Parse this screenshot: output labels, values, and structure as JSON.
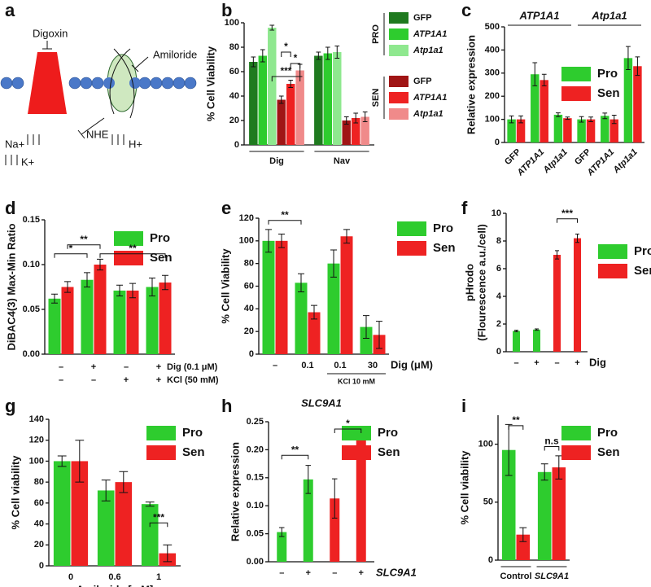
{
  "diagram": {
    "panel": "a",
    "labels": {
      "digoxin": "Digoxin",
      "amiloride": "Amiloride",
      "nhe": "NHE",
      "na": "Na+",
      "k": "K+",
      "h": "H+"
    }
  },
  "chart_data": [
    {
      "panel": "b",
      "type": "bar",
      "ylabel": "% Cell Viability",
      "categories": [
        "Dig",
        "Nav"
      ],
      "ylim": [
        0,
        100
      ],
      "yticks": [
        0,
        20,
        40,
        60,
        80,
        100
      ],
      "legend_groups": [
        "PRO",
        "SEN"
      ],
      "series": [
        {
          "name": "GFP",
          "color": "#1f7a1f",
          "values": [
            68,
            73
          ],
          "errors": [
            4,
            3
          ]
        },
        {
          "name": "ATP1A1",
          "color": "#2ecc2e",
          "values": [
            73,
            75
          ],
          "errors": [
            5,
            5
          ]
        },
        {
          "name": "Atp1a1",
          "color": "#8fe88f",
          "values": [
            96,
            76
          ],
          "errors": [
            2,
            5
          ]
        },
        {
          "name": "GFP",
          "color": "#a01515",
          "values": [
            37,
            20
          ],
          "errors": [
            3,
            3
          ]
        },
        {
          "name": "ATP1A1",
          "color": "#ee2222",
          "values": [
            50,
            22
          ],
          "errors": [
            3,
            4
          ]
        },
        {
          "name": "Atp1a1",
          "color": "#f08a8a",
          "values": [
            61,
            23
          ],
          "errors": [
            5,
            4
          ]
        }
      ],
      "annotations": [
        "***",
        "*",
        "*"
      ]
    },
    {
      "panel": "c",
      "type": "bar",
      "ylabel": "Relative expression",
      "categories": [
        "GFP",
        "ATP1A1",
        "Atp1a1",
        "GFP",
        "ATP1A1",
        "Atp1a1"
      ],
      "group_labels": [
        "ATP1A1",
        "Atp1a1"
      ],
      "ylim": [
        0,
        500
      ],
      "yticks": [
        0,
        100,
        200,
        300,
        400,
        500
      ],
      "series": [
        {
          "name": "Pro",
          "color": "#2ecc2e",
          "values": [
            100,
            295,
            120,
            100,
            115,
            365
          ],
          "errors": [
            15,
            50,
            8,
            12,
            12,
            50
          ]
        },
        {
          "name": "Sen",
          "color": "#ee2222",
          "values": [
            100,
            270,
            105,
            100,
            100,
            330
          ],
          "errors": [
            15,
            25,
            5,
            10,
            18,
            40
          ]
        }
      ],
      "annotations": []
    },
    {
      "panel": "d",
      "type": "bar",
      "ylabel": "DiBAC4(3) Max-Min Ratio",
      "categories": [
        null,
        null,
        null,
        null
      ],
      "x_rows": [
        {
          "label": "Dig (0.1 μM)",
          "values": [
            "–",
            "+",
            "–",
            "+"
          ]
        },
        {
          "label": "KCl (50 mM)",
          "values": [
            "–",
            "–",
            "+",
            "+"
          ]
        }
      ],
      "ylim": [
        0,
        0.15
      ],
      "yticks": [
        {
          "value": 0,
          "label": "0.00"
        },
        {
          "value": 0.05,
          "label": "0.05"
        },
        {
          "value": 0.1,
          "label": "0.10"
        },
        {
          "value": 0.15,
          "label": "0.15"
        }
      ],
      "series": [
        {
          "name": "Pro",
          "color": "#2ecc2e",
          "values": [
            0.062,
            0.083,
            0.071,
            0.075
          ],
          "errors": [
            0.005,
            0.008,
            0.006,
            0.01
          ]
        },
        {
          "name": "Sen",
          "color": "#ee2222",
          "values": [
            0.075,
            0.1,
            0.071,
            0.08
          ],
          "errors": [
            0.006,
            0.006,
            0.008,
            0.008
          ]
        }
      ],
      "annotations": [
        "*",
        "**",
        "**"
      ]
    },
    {
      "panel": "e",
      "type": "bar",
      "ylabel": "% Cell Viability",
      "categories": [
        "–",
        "0.1",
        "0.1",
        "30"
      ],
      "xlabel": "Dig (μM)",
      "bracket_label": "KCl 10 mM",
      "ylim": [
        0,
        120
      ],
      "yticks": [
        0,
        20,
        40,
        60,
        80,
        100,
        120
      ],
      "series": [
        {
          "name": "Pro",
          "color": "#2ecc2e",
          "values": [
            100,
            63,
            80,
            24
          ],
          "errors": [
            10,
            8,
            12,
            10
          ]
        },
        {
          "name": "Sen",
          "color": "#ee2222",
          "values": [
            100,
            37,
            104,
            17
          ],
          "errors": [
            6,
            6,
            6,
            12
          ]
        }
      ],
      "annotations": [
        "**"
      ]
    },
    {
      "panel": "f",
      "type": "bar",
      "ylabel": [
        "pHrodo",
        "(Flourescence a.u./cell)"
      ],
      "categories": [
        "–",
        "+",
        "–",
        "+"
      ],
      "xlabel": "Dig",
      "ylim": [
        0,
        10
      ],
      "yticks": [
        0,
        2,
        4,
        6,
        8,
        10
      ],
      "series": [
        {
          "name": "Pro",
          "color": "#2ecc2e",
          "values": [
            1.5,
            1.6,
            null,
            null
          ],
          "errors": [
            0.05,
            0.05,
            null,
            null
          ]
        },
        {
          "name": "Sen",
          "color": "#ee2222",
          "values": [
            null,
            null,
            7.0,
            8.2
          ],
          "errors": [
            null,
            null,
            0.3,
            0.3
          ]
        }
      ],
      "annotations": [
        "***"
      ]
    },
    {
      "panel": "g",
      "type": "bar",
      "ylabel": "% Cell viability",
      "categories": [
        "0",
        "0.6",
        "1"
      ],
      "xlabel": "Amiloride [mM]",
      "ylim": [
        0,
        140
      ],
      "yticks": [
        0,
        20,
        40,
        60,
        80,
        100,
        120,
        140
      ],
      "series": [
        {
          "name": "Pro",
          "color": "#2ecc2e",
          "values": [
            100,
            72,
            59
          ],
          "errors": [
            5,
            10,
            2
          ]
        },
        {
          "name": "Sen",
          "color": "#ee2222",
          "values": [
            100,
            80,
            12
          ],
          "errors": [
            20,
            10,
            8
          ]
        }
      ],
      "annotations": [
        "***"
      ]
    },
    {
      "panel": "h",
      "type": "bar",
      "title": "SLC9A1",
      "ylabel": "Relative expression",
      "categories": [
        "–",
        "+",
        "–",
        "+"
      ],
      "xlabel": "SLC9A1",
      "ylim": [
        0,
        0.25
      ],
      "yticks": [
        {
          "value": 0,
          "label": "0.00"
        },
        {
          "value": 0.05,
          "label": "0.05"
        },
        {
          "value": 0.1,
          "label": "0.10"
        },
        {
          "value": 0.15,
          "label": "0.15"
        },
        {
          "value": 0.2,
          "label": "0.20"
        },
        {
          "value": 0.25,
          "label": "0.25"
        }
      ],
      "series": [
        {
          "name": "Pro",
          "color": "#2ecc2e",
          "values": [
            0.053,
            0.147,
            null,
            null
          ],
          "errors": [
            0.008,
            0.025,
            null,
            null
          ]
        },
        {
          "name": "Sen",
          "color": "#ee2222",
          "values": [
            null,
            null,
            0.113,
            0.22
          ],
          "errors": [
            null,
            null,
            0.035,
            0.002
          ]
        }
      ],
      "annotations": [
        "**",
        "*"
      ]
    },
    {
      "panel": "i",
      "type": "bar",
      "ylabel": "% Cell viability",
      "categories": [
        "Control",
        "SLC9A1"
      ],
      "ylim": [
        0,
        125
      ],
      "yticks": [
        0,
        50,
        100
      ],
      "series": [
        {
          "name": "Pro",
          "color": "#2ecc2e",
          "values": [
            95,
            76
          ],
          "errors": [
            22,
            7
          ]
        },
        {
          "name": "Sen",
          "color": "#ee2222",
          "values": [
            22,
            80
          ],
          "errors": [
            6,
            10
          ]
        }
      ],
      "annotations": [
        "**",
        "n.s"
      ]
    }
  ]
}
